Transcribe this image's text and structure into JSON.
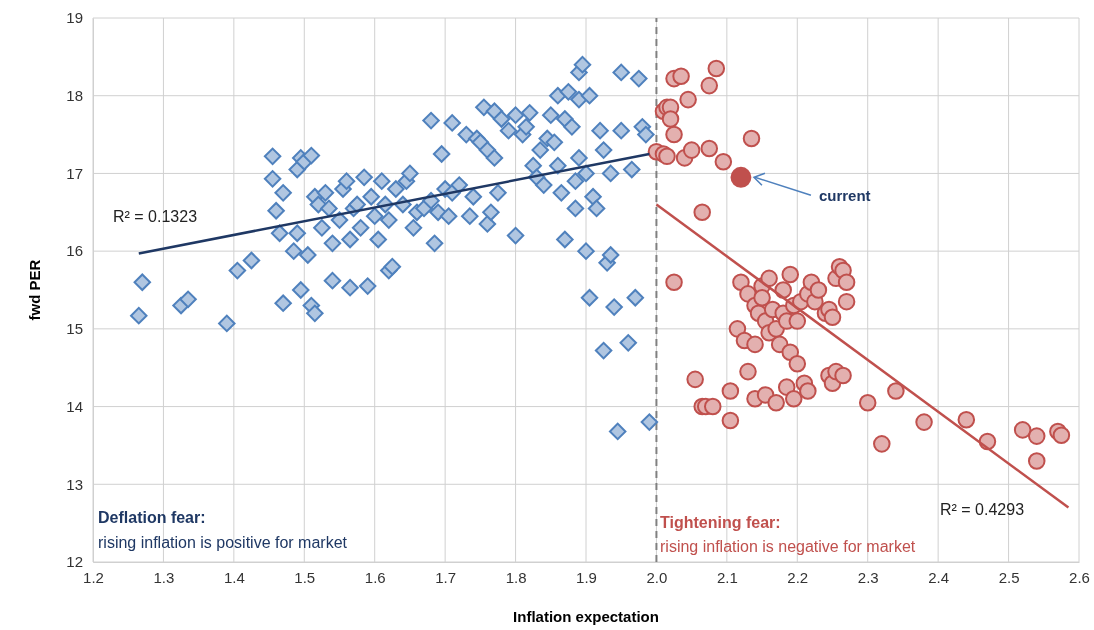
{
  "chart_data": {
    "type": "scatter",
    "xlabel": "Inflation expectation",
    "ylabel": "fwd PER",
    "xlim": [
      1.2,
      2.6
    ],
    "xticks": [
      1.2,
      1.3,
      1.4,
      1.5,
      1.6,
      1.7,
      1.8,
      1.9,
      {
        "value": 2,
        "label": "2.0"
      },
      2.1,
      2.2,
      2.3,
      2.4,
      2.5,
      2.6
    ],
    "ylim": [
      12,
      19
    ],
    "yticks": [
      12,
      13,
      14,
      15,
      16,
      17,
      18,
      19
    ],
    "grid": true,
    "ref_lines": [
      {
        "axis": "x",
        "value": 2,
        "label": null,
        "color": "#808080",
        "line_style": "dashed"
      }
    ],
    "annotations": [
      "current",
      "R² = 0.1323",
      "R² = 0.4293",
      "Deflation fear:",
      "rising inflation is positive for market",
      "Tightening fear:",
      "rising inflation is negative for market"
    ],
    "series": [
      {
        "marker": "diamond",
        "color": "#4f81bd",
        "x": [
          1.265,
          1.27,
          1.325,
          1.335,
          1.39,
          1.405,
          1.425,
          1.455,
          1.455,
          1.46,
          1.465,
          1.47,
          1.47,
          1.485,
          1.49,
          1.49,
          1.495,
          1.5,
          1.495,
          1.505,
          1.51,
          1.515,
          1.515,
          1.51,
          1.52,
          1.525,
          1.53,
          1.535,
          1.54,
          1.54,
          1.55,
          1.555,
          1.56,
          1.565,
          1.57,
          1.565,
          1.575,
          1.58,
          1.585,
          1.59,
          1.595,
          1.6,
          1.605,
          1.61,
          1.615,
          1.62,
          1.62,
          1.625,
          1.63,
          1.64,
          1.645,
          1.65,
          1.655,
          1.66,
          1.67,
          1.68,
          1.685,
          1.68,
          1.69,
          1.695,
          1.7,
          1.705,
          1.71,
          1.71,
          1.72,
          1.73,
          1.735,
          1.74,
          1.745,
          1.75,
          1.755,
          1.76,
          1.76,
          1.765,
          1.77,
          1.77,
          1.775,
          1.78,
          1.79,
          1.8,
          1.8,
          1.81,
          1.815,
          1.82,
          1.825,
          1.83,
          1.835,
          1.84,
          1.845,
          1.85,
          1.855,
          1.86,
          1.86,
          1.865,
          1.87,
          1.87,
          1.875,
          1.88,
          1.885,
          1.885,
          1.89,
          1.89,
          1.89,
          1.895,
          1.9,
          1.9,
          1.905,
          1.905,
          1.91,
          1.915,
          1.92,
          1.925,
          1.925,
          1.93,
          1.935,
          1.935,
          1.94,
          1.945,
          1.95,
          1.95,
          1.96,
          1.965,
          1.97,
          1.975,
          1.98,
          1.985,
          1.99
        ],
        "values": [
          15.17,
          15.6,
          15.3,
          15.38,
          15.07,
          15.75,
          15.88,
          17.22,
          16.93,
          16.52,
          16.23,
          15.33,
          16.75,
          16.0,
          16.23,
          17.05,
          17.2,
          17.15,
          15.5,
          15.95,
          15.3,
          15.2,
          16.7,
          17.23,
          16.6,
          16.3,
          16.75,
          16.55,
          16.1,
          15.62,
          16.4,
          16.8,
          16.9,
          16.15,
          16.55,
          15.53,
          16.6,
          16.3,
          16.95,
          15.55,
          16.7,
          16.45,
          16.15,
          16.9,
          16.6,
          16.4,
          15.75,
          15.8,
          16.8,
          16.6,
          16.9,
          17.0,
          16.3,
          16.5,
          16.55,
          16.65,
          16.1,
          17.68,
          16.5,
          17.25,
          16.8,
          16.45,
          16.75,
          17.65,
          16.85,
          17.5,
          16.45,
          16.7,
          17.45,
          17.4,
          17.85,
          17.3,
          16.35,
          16.5,
          17.2,
          17.8,
          16.75,
          17.7,
          17.55,
          17.75,
          16.2,
          17.5,
          17.6,
          17.78,
          17.1,
          16.95,
          17.3,
          16.85,
          17.45,
          17.75,
          17.4,
          18.0,
          17.1,
          16.75,
          17.7,
          16.15,
          18.05,
          17.6,
          16.55,
          16.9,
          17.95,
          17.2,
          18.3,
          18.4,
          17.0,
          16.0,
          18.0,
          15.4,
          16.7,
          16.55,
          17.55,
          17.3,
          14.72,
          15.85,
          17.0,
          15.95,
          15.28,
          13.68,
          17.55,
          18.3,
          14.82,
          17.05,
          15.4,
          18.22,
          17.6,
          17.5,
          13.8
        ]
      },
      {
        "marker": "circle",
        "color": "#c0504d",
        "x": [
          2.0,
          2.01,
          2.015,
          2.01,
          2.015,
          2.02,
          2.02,
          2.025,
          2.025,
          2.035,
          2.025,
          2.04,
          2.045,
          2.05,
          2.055,
          2.065,
          2.065,
          2.07,
          2.075,
          2.075,
          2.08,
          2.085,
          2.095,
          2.105,
          2.105,
          2.115,
          2.12,
          2.125,
          2.13,
          2.13,
          2.135,
          2.14,
          2.14,
          2.14,
          2.145,
          2.15,
          2.15,
          2.155,
          2.155,
          2.16,
          2.16,
          2.165,
          2.17,
          2.17,
          2.175,
          2.18,
          2.18,
          2.185,
          2.185,
          2.19,
          2.19,
          2.195,
          2.195,
          2.2,
          2.2,
          2.205,
          2.21,
          2.215,
          2.215,
          2.22,
          2.225,
          2.23,
          2.24,
          2.245,
          2.245,
          2.25,
          2.25,
          2.255,
          2.255,
          2.26,
          2.265,
          2.265,
          2.27,
          2.27,
          2.3,
          2.32,
          2.34,
          2.38,
          2.44,
          2.47,
          2.52,
          2.54,
          2.54,
          2.57,
          2.575
        ],
        "values": [
          17.28,
          17.25,
          17.22,
          17.8,
          17.85,
          17.85,
          17.7,
          17.5,
          18.22,
          18.25,
          15.6,
          17.2,
          17.95,
          17.3,
          14.35,
          14.0,
          16.5,
          14.0,
          18.13,
          17.32,
          14.0,
          18.35,
          17.15,
          13.82,
          14.2,
          15.0,
          15.6,
          14.85,
          15.45,
          14.45,
          17.45,
          15.3,
          14.1,
          14.8,
          15.2,
          15.55,
          15.4,
          14.15,
          15.1,
          15.65,
          14.95,
          15.25,
          14.05,
          15.0,
          14.8,
          15.5,
          15.2,
          14.25,
          15.1,
          15.7,
          14.7,
          14.1,
          15.3,
          15.1,
          14.55,
          15.35,
          14.3,
          14.2,
          15.45,
          15.6,
          15.35,
          15.5,
          15.2,
          14.4,
          15.25,
          14.3,
          15.15,
          15.65,
          14.45,
          15.8,
          15.75,
          14.4,
          15.6,
          15.35,
          14.05,
          13.52,
          14.2,
          13.8,
          13.83,
          13.55,
          13.7,
          13.62,
          13.3,
          13.68,
          13.63
        ]
      },
      {
        "marker": "circle",
        "color": "#c0504d",
        "x": [
          2.12
        ],
        "values": [
          16.95
        ]
      },
      {
        "type": "line",
        "color": "#1f3864",
        "x": [
          1.265,
          1.99
        ],
        "values": [
          15.97,
          17.25
        ]
      },
      {
        "type": "line",
        "color": "#c0504d",
        "x": [
          2.0,
          2.585
        ],
        "values": [
          16.6,
          12.7
        ]
      }
    ]
  }
}
